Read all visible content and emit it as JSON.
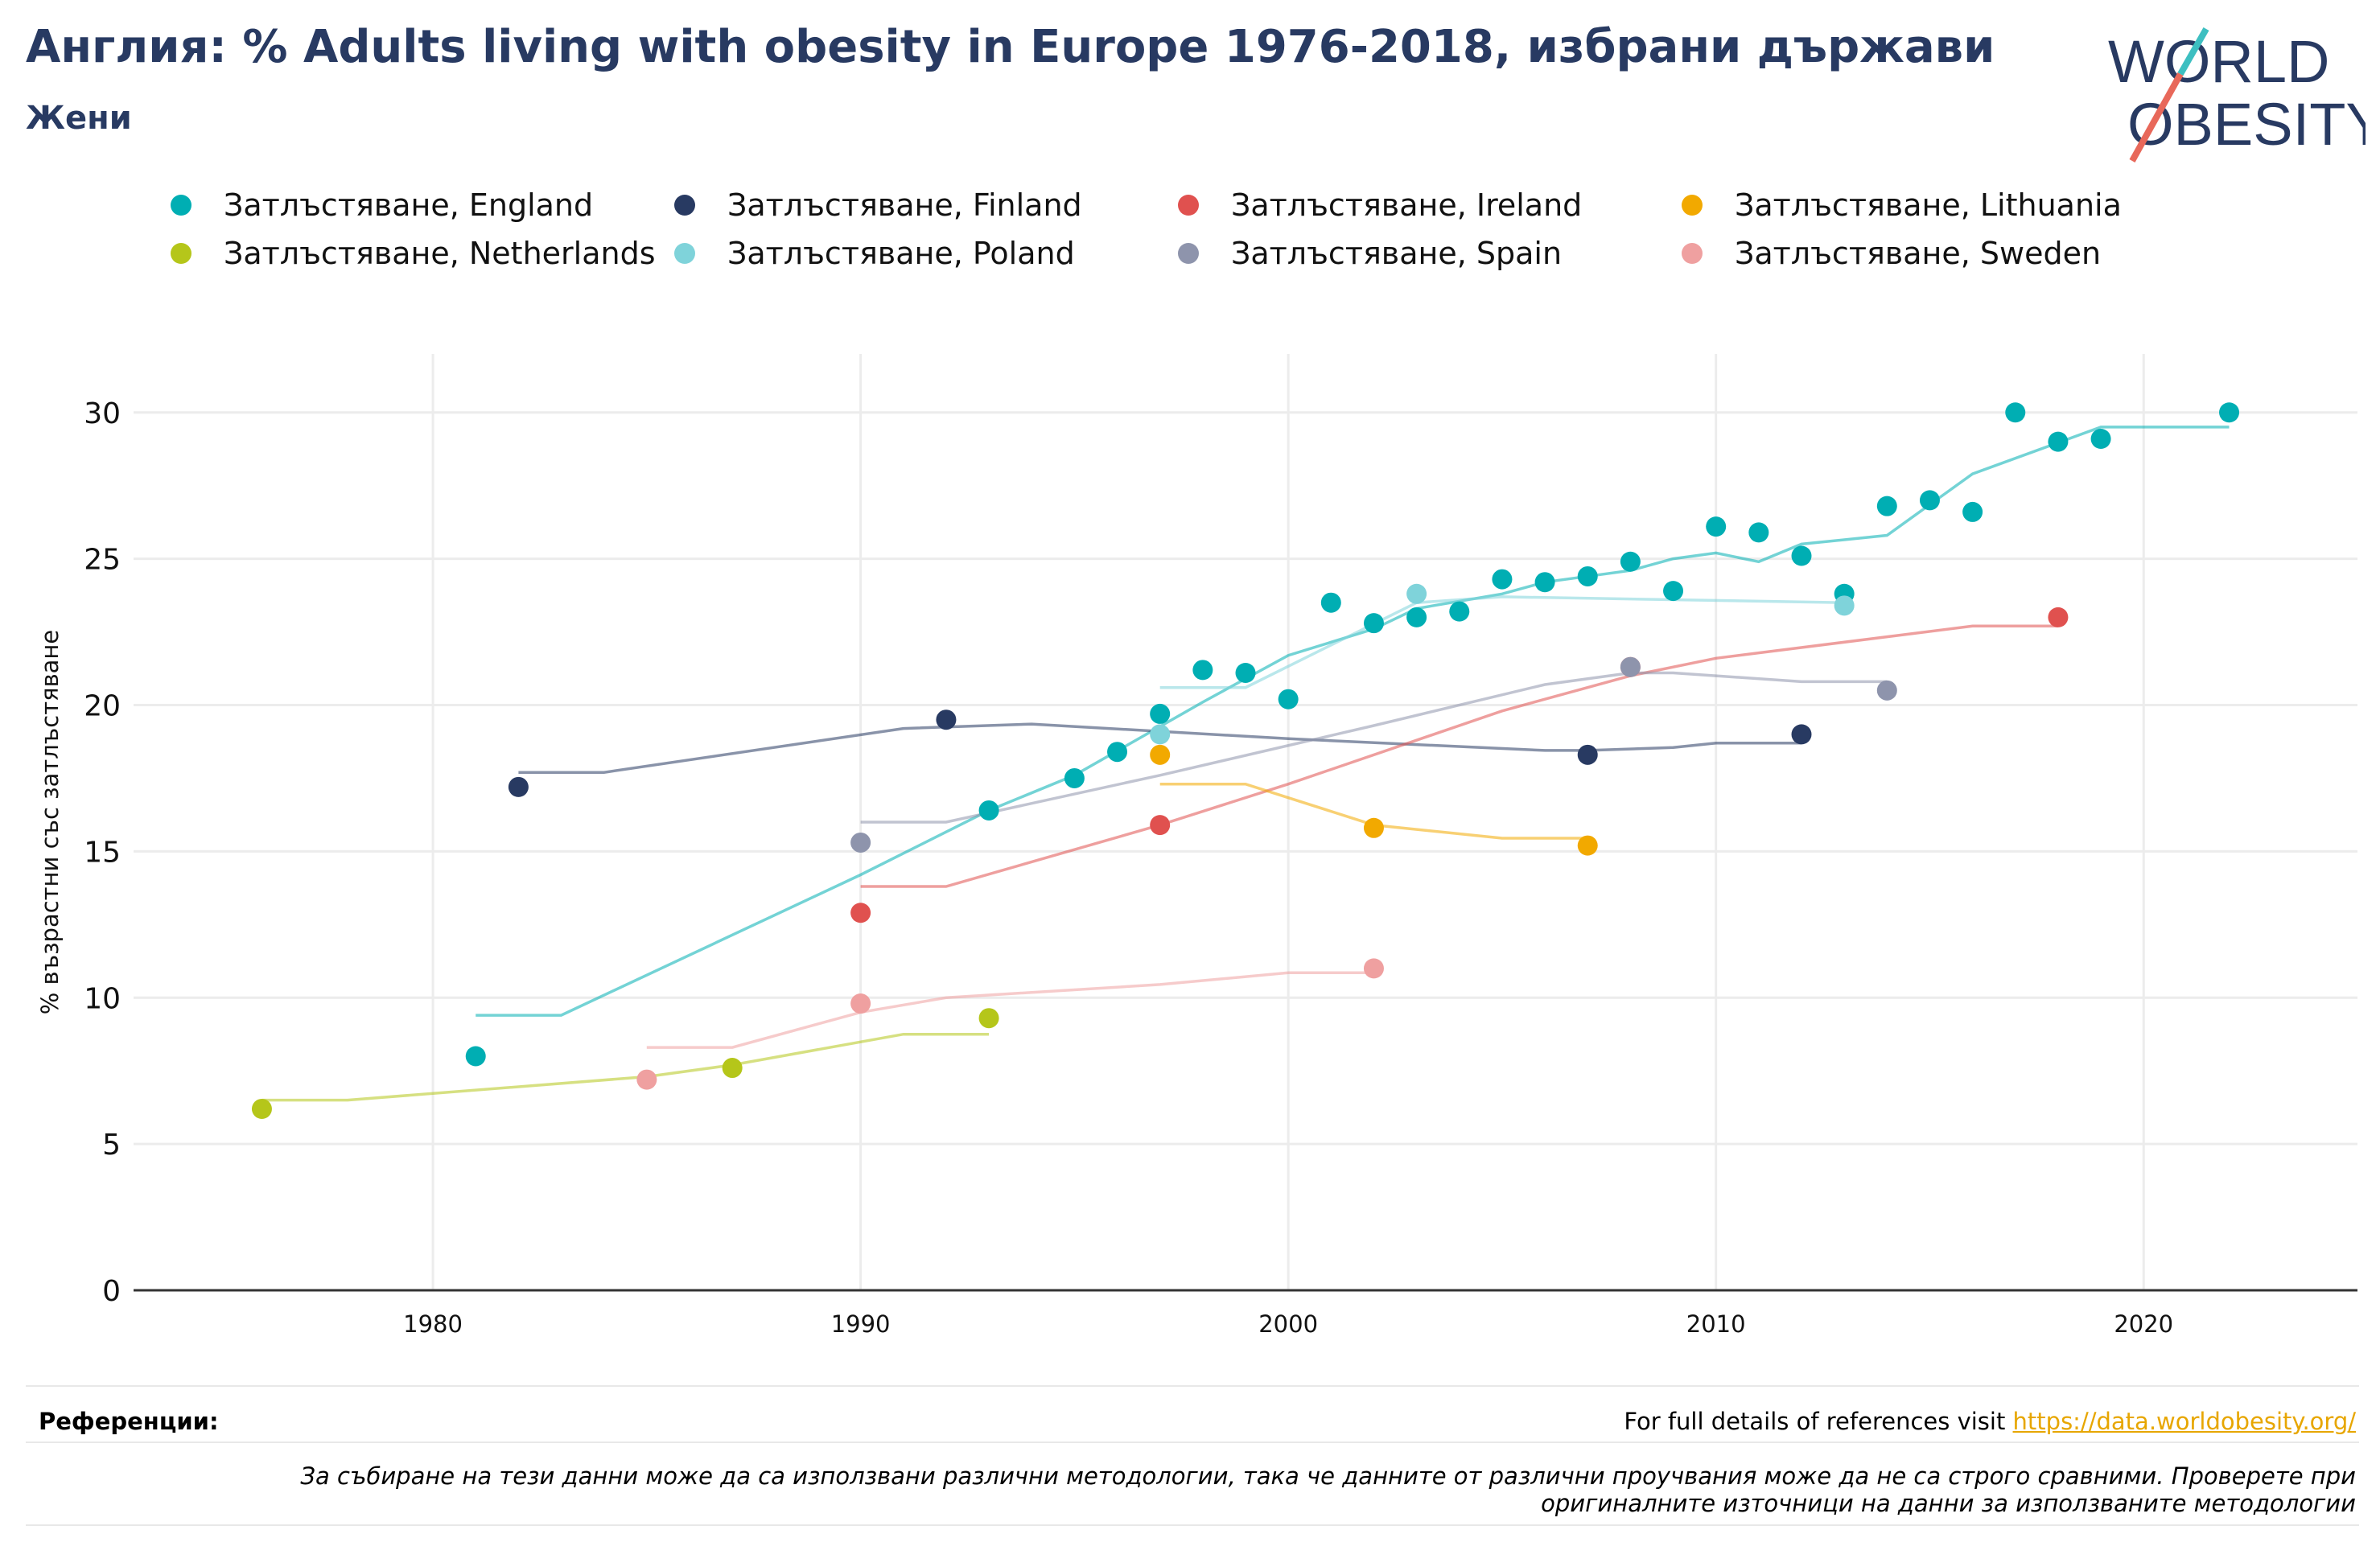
{
  "header": {
    "title": "Англия: % Adults living with obesity in Europe 1976-2018, избрани държави",
    "subtitle": "Жени"
  },
  "logo": {
    "line1": "WORLD",
    "line2": "OBESITY"
  },
  "chart_data": {
    "type": "scatter",
    "ylabel": "% възрастни със затлъстяване",
    "xlabel": "",
    "xlim": [
      1973,
      2025
    ],
    "ylim": [
      0,
      32
    ],
    "x_ticks": [
      1980,
      1990,
      2000,
      2010,
      2020
    ],
    "y_ticks": [
      0,
      5,
      10,
      15,
      20,
      25,
      30
    ],
    "grid": true,
    "legend_position": "top",
    "series": [
      {
        "name": "Затлъстяване, England",
        "color": "#00AEB3",
        "points": [
          [
            1981,
            8.0
          ],
          [
            1993,
            16.4
          ],
          [
            1995,
            17.5
          ],
          [
            1996,
            18.4
          ],
          [
            1997,
            19.7
          ],
          [
            1998,
            21.2
          ],
          [
            1999,
            21.1
          ],
          [
            2000,
            20.2
          ],
          [
            2001,
            23.5
          ],
          [
            2002,
            22.8
          ],
          [
            2003,
            23.0
          ],
          [
            2004,
            23.2
          ],
          [
            2005,
            24.3
          ],
          [
            2006,
            24.2
          ],
          [
            2007,
            24.4
          ],
          [
            2008,
            24.9
          ],
          [
            2009,
            23.9
          ],
          [
            2010,
            26.1
          ],
          [
            2011,
            25.9
          ],
          [
            2012,
            25.1
          ],
          [
            2013,
            23.8
          ],
          [
            2014,
            26.8
          ],
          [
            2015,
            27.0
          ],
          [
            2016,
            26.6
          ],
          [
            2017,
            30.0
          ],
          [
            2018,
            29.0
          ],
          [
            2019,
            29.1
          ],
          [
            2022,
            30.0
          ]
        ],
        "trend": [
          [
            1981,
            9.4
          ],
          [
            1983,
            9.4
          ],
          [
            1990,
            14.2
          ],
          [
            1993,
            16.4
          ],
          [
            1995,
            17.6
          ],
          [
            1998,
            20.1
          ],
          [
            2000,
            21.7
          ],
          [
            2002,
            22.6
          ],
          [
            2003,
            23.3
          ],
          [
            2005,
            23.8
          ],
          [
            2006,
            24.2
          ],
          [
            2008,
            24.6
          ],
          [
            2009,
            25.0
          ],
          [
            2010,
            25.2
          ],
          [
            2011,
            24.9
          ],
          [
            2012,
            25.5
          ],
          [
            2014,
            25.8
          ],
          [
            2016,
            27.9
          ],
          [
            2019,
            29.5
          ],
          [
            2022,
            29.5
          ]
        ]
      },
      {
        "name": "Затлъстяване, Finland",
        "color": "#283A62",
        "points": [
          [
            1982,
            17.2
          ],
          [
            1992,
            19.5
          ],
          [
            2007,
            18.3
          ],
          [
            2012,
            19.0
          ]
        ],
        "trend": [
          [
            1982,
            17.7
          ],
          [
            1984,
            17.7
          ],
          [
            1991,
            19.2
          ],
          [
            1994,
            19.35
          ],
          [
            2000,
            18.85
          ],
          [
            2006,
            18.45
          ],
          [
            2007,
            18.45
          ],
          [
            2009,
            18.55
          ],
          [
            2010,
            18.7
          ],
          [
            2012,
            18.7
          ]
        ]
      },
      {
        "name": "Затлъстяване, Ireland",
        "color": "#E0514F",
        "points": [
          [
            1990,
            12.9
          ],
          [
            1997,
            15.9
          ],
          [
            2008,
            21.3
          ],
          [
            2018,
            23.0
          ]
        ],
        "trend": [
          [
            1990,
            13.8
          ],
          [
            1992,
            13.8
          ],
          [
            1997,
            15.9
          ],
          [
            2000,
            17.3
          ],
          [
            2005,
            19.8
          ],
          [
            2008,
            21.0
          ],
          [
            2010,
            21.6
          ],
          [
            2016,
            22.7
          ],
          [
            2018,
            22.7
          ]
        ]
      },
      {
        "name": "Затлъстяване, Lithuania",
        "color": "#F2A900",
        "points": [
          [
            1997,
            18.3
          ],
          [
            2002,
            15.8
          ],
          [
            2007,
            15.2
          ]
        ],
        "trend": [
          [
            1997,
            17.3
          ],
          [
            1999,
            17.3
          ],
          [
            2002,
            15.9
          ],
          [
            2005,
            15.45
          ],
          [
            2007,
            15.45
          ]
        ]
      },
      {
        "name": "Затлъстяване, Netherlands",
        "color": "#B5C61A",
        "points": [
          [
            1976,
            6.2
          ],
          [
            1987,
            7.6
          ],
          [
            1993,
            9.3
          ]
        ],
        "trend": [
          [
            1976,
            6.5
          ],
          [
            1978,
            6.5
          ],
          [
            1985,
            7.3
          ],
          [
            1987,
            7.7
          ],
          [
            1991,
            8.75
          ],
          [
            1993,
            8.75
          ]
        ]
      },
      {
        "name": "Затлъстяване, Poland",
        "color": "#7FD3DA",
        "points": [
          [
            1997,
            19.0
          ],
          [
            2003,
            23.8
          ],
          [
            2013,
            23.4
          ]
        ],
        "trend": [
          [
            1997,
            20.6
          ],
          [
            1999,
            20.6
          ],
          [
            2003,
            23.5
          ],
          [
            2005,
            23.7
          ],
          [
            2013,
            23.5
          ]
        ]
      },
      {
        "name": "Затлъстяване, Spain",
        "color": "#8E94AC",
        "points": [
          [
            1990,
            15.3
          ],
          [
            2008,
            21.3
          ],
          [
            2014,
            20.5
          ]
        ],
        "trend": [
          [
            1990,
            16.0
          ],
          [
            1992,
            16.0
          ],
          [
            1997,
            17.6
          ],
          [
            2002,
            19.3
          ],
          [
            2006,
            20.7
          ],
          [
            2008,
            21.1
          ],
          [
            2009,
            21.1
          ],
          [
            2012,
            20.8
          ],
          [
            2014,
            20.8
          ]
        ]
      },
      {
        "name": "Затлъстяване, Sweden",
        "color": "#EFA0A0",
        "points": [
          [
            1985,
            7.2
          ],
          [
            1990,
            9.8
          ],
          [
            2002,
            11.0
          ]
        ],
        "trend": [
          [
            1985,
            8.3
          ],
          [
            1987,
            8.3
          ],
          [
            1990,
            9.5
          ],
          [
            1992,
            10.0
          ],
          [
            1997,
            10.45
          ],
          [
            2000,
            10.85
          ],
          [
            2002,
            10.85
          ]
        ]
      }
    ]
  },
  "footer": {
    "references_label": "Референции:",
    "references_text": "For full details of references visit",
    "references_link": "https://data.worldobesity.org/",
    "note": "За събиране на тези данни може да са използвани различни методологии, така че данните от различни проучвания може да не са строго сравними. Проверете при оригиналните източници на данни за използваните методологии"
  }
}
